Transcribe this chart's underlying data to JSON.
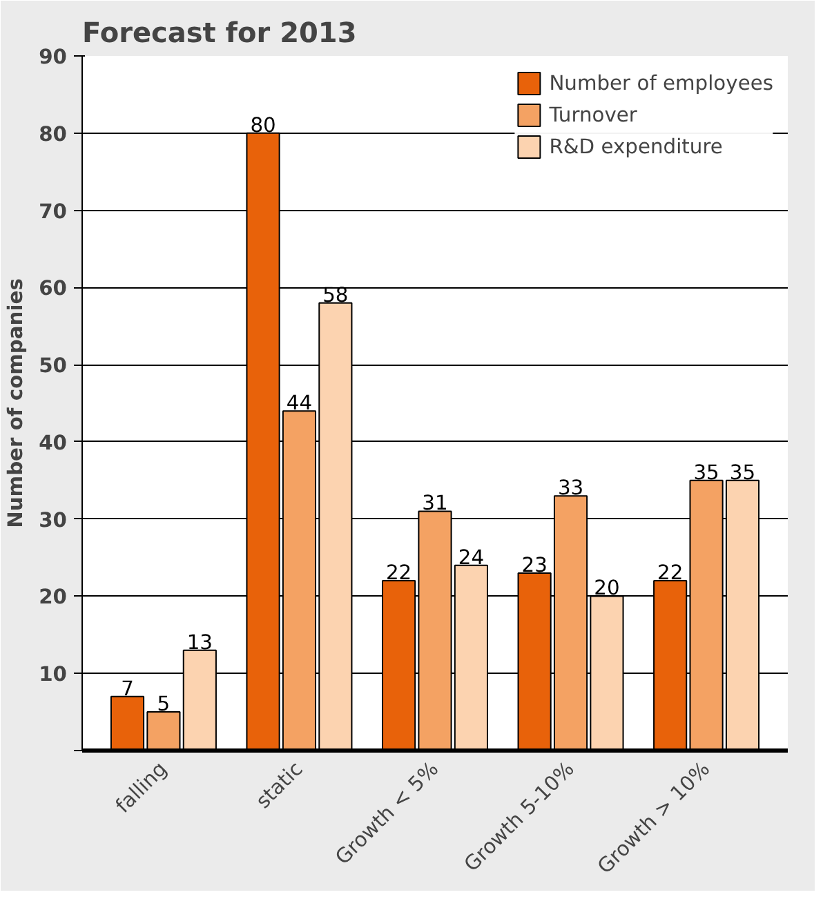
{
  "chart_data": {
    "type": "bar",
    "title": "Forecast for 2013",
    "ylabel": "Number of companies",
    "categories": [
      "falling",
      "static",
      "Growth < 5%",
      "Growth 5-10%",
      "Growth > 10%"
    ],
    "series": [
      {
        "name": "Number of employees",
        "color": "#e8620a",
        "values": [
          7,
          80,
          22,
          23,
          22
        ]
      },
      {
        "name": "Turnover",
        "color": "#f4a263",
        "values": [
          5,
          44,
          31,
          33,
          35
        ]
      },
      {
        "name": "R&D expenditure",
        "color": "#fcd3b0",
        "values": [
          13,
          58,
          24,
          20,
          35
        ]
      }
    ],
    "ylim": [
      0,
      90
    ],
    "yticks": [
      {
        "value": 0,
        "label": null
      },
      10,
      20,
      30,
      40,
      50,
      60,
      70,
      80,
      90
    ],
    "grid": "y",
    "legend": "top right",
    "data_labels": true
  }
}
